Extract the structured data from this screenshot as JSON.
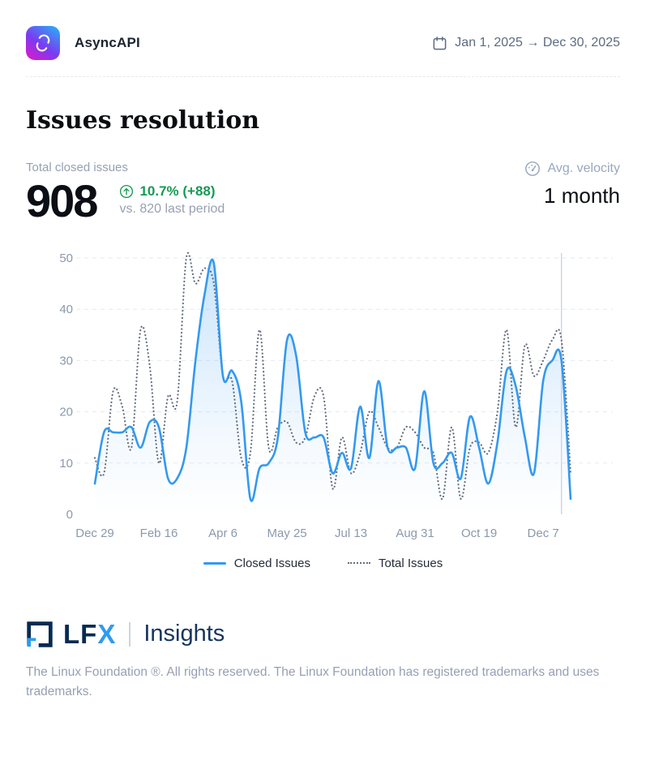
{
  "header": {
    "org_name": "AsyncAPI",
    "date_range": "Jan 1, 2025 → Dec 30, 2025"
  },
  "page": {
    "title": "Issues resolution"
  },
  "stats": {
    "metric_label": "Total closed issues",
    "metric_value": "908",
    "delta": "10.7% (+88)",
    "comparison": "vs. 820 last period",
    "velocity_label": "Avg. velocity",
    "velocity_value": "1 month"
  },
  "chart_data": {
    "type": "line",
    "x_unit": "week",
    "x_tick_labels": [
      "Dec 29",
      "Feb 16",
      "Apr 6",
      "May 25",
      "Jul 13",
      "Aug 31",
      "Oct 19",
      "Dec 7"
    ],
    "x_tick_positions": [
      0,
      7,
      14,
      21,
      28,
      35,
      42,
      49
    ],
    "y_ticks": [
      0,
      10,
      20,
      30,
      40,
      50
    ],
    "ylim": [
      0,
      50
    ],
    "grid": "horizontal-dashed",
    "legend_position": "bottom",
    "current_period_marker_index": 51,
    "series": [
      {
        "name": "Closed Issues",
        "style": "solid",
        "color": "#3399f0",
        "area_fill": true,
        "values": [
          6,
          16,
          16,
          16,
          17,
          13,
          18,
          17,
          7,
          7,
          13,
          30,
          43,
          49,
          27,
          28,
          22,
          3,
          9,
          10,
          15,
          34,
          31,
          16,
          15,
          15,
          8,
          12,
          9,
          21,
          11,
          26,
          13,
          13,
          13,
          9,
          24,
          10,
          10,
          12,
          7,
          19,
          13,
          6,
          14,
          28,
          25,
          15,
          8,
          26,
          30,
          30,
          3
        ]
      },
      {
        "name": "Total Issues",
        "style": "dotted",
        "color": "#636e7e",
        "area_fill": false,
        "values": [
          11,
          8,
          24,
          21,
          13,
          36,
          29,
          10,
          23,
          22,
          50,
          45,
          48,
          45,
          27,
          26,
          11,
          12,
          36,
          13,
          17,
          18,
          14,
          15,
          23,
          23,
          5,
          15,
          8,
          12,
          20,
          17,
          13,
          13,
          17,
          16,
          13,
          12,
          3,
          17,
          3,
          13,
          14,
          12,
          20,
          36,
          17,
          33,
          27,
          30,
          34,
          34,
          8
        ]
      }
    ]
  },
  "footer": {
    "brand_lf": "LF",
    "brand_x": "X",
    "product": "Insights",
    "copyright": "The Linux Foundation ®. All rights reserved. The Linux Foundation has registered trademarks and uses trademarks."
  },
  "colors": {
    "accent_blue": "#3399f0",
    "dotted_gray": "#636e7e",
    "positive_green": "#169a53",
    "muted_text": "#97a1b3",
    "navy": "#062a52",
    "grid_line": "#e5eaf1",
    "marker_line": "#c9d2de"
  },
  "icons": {
    "org_logo": "asyncapi-logo",
    "date": "calendar-icon",
    "delta": "circle-arrow-up-icon",
    "velocity": "gauge-icon",
    "brand": "lfx-logo-icon"
  }
}
